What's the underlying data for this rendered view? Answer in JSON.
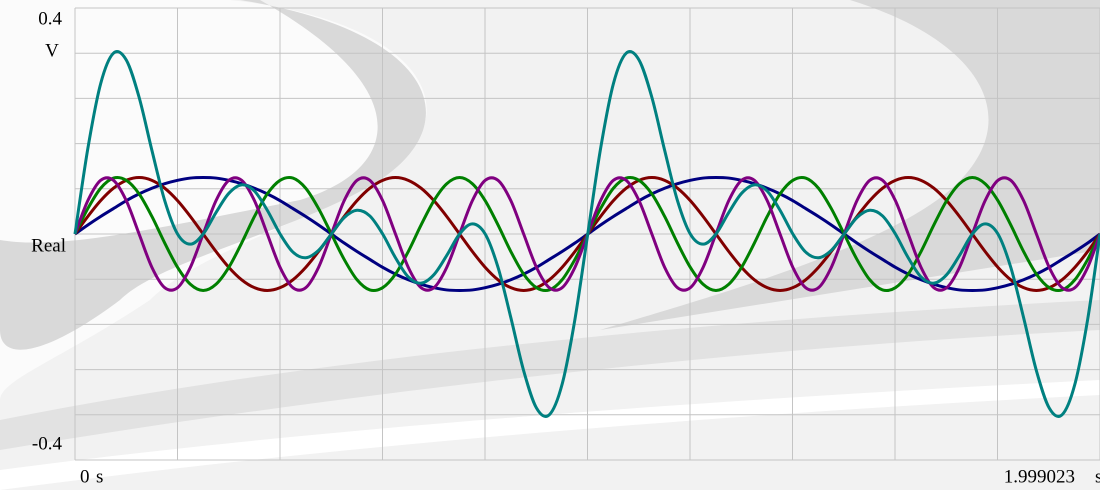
{
  "chart_data": {
    "type": "line",
    "y_label": "Real",
    "y_unit": "V",
    "x_unit": "s",
    "xlim": [
      0,
      1.999023
    ],
    "ylim": [
      -0.4,
      0.4
    ],
    "xticks": [
      0,
      1.999023
    ],
    "yticks": [
      0.4,
      -0.4
    ],
    "grid": true,
    "grid_divisions": [
      10,
      10
    ],
    "x": [
      0,
      0.025,
      0.05,
      0.075,
      0.1,
      0.125,
      0.15,
      0.175,
      0.2,
      0.225,
      0.25,
      0.275,
      0.3,
      0.325,
      0.35,
      0.375,
      0.4,
      0.425,
      0.45,
      0.475,
      0.5,
      0.525,
      0.55,
      0.575,
      0.6,
      0.625,
      0.65,
      0.675,
      0.7,
      0.725,
      0.75,
      0.775,
      0.8,
      0.825,
      0.85,
      0.875,
      0.9,
      0.925,
      0.95,
      0.975,
      1,
      1.025,
      1.05,
      1.075,
      1.1,
      1.125,
      1.15,
      1.175,
      1.2,
      1.225,
      1.25,
      1.275,
      1.3,
      1.325,
      1.35,
      1.375,
      1.4,
      1.425,
      1.45,
      1.475,
      1.5,
      1.525,
      1.55,
      1.575,
      1.6,
      1.625,
      1.65,
      1.675,
      1.7,
      1.725,
      1.75,
      1.775,
      1.8,
      1.825,
      1.85,
      1.875,
      1.9,
      1.925,
      1.95,
      1.975,
      1.999023
    ],
    "series": [
      {
        "color": "#000080",
        "values": [
          0,
          0.016,
          0.031,
          0.045,
          0.059,
          0.071,
          0.081,
          0.089,
          0.095,
          0.099,
          0.1,
          0.099,
          0.095,
          0.089,
          0.081,
          0.071,
          0.059,
          0.045,
          0.031,
          0.016,
          0,
          -0.016,
          -0.031,
          -0.045,
          -0.059,
          -0.071,
          -0.081,
          -0.089,
          -0.095,
          -0.099,
          -0.1,
          -0.099,
          -0.095,
          -0.089,
          -0.081,
          -0.071,
          -0.059,
          -0.045,
          -0.031,
          -0.016,
          0,
          0.016,
          0.031,
          0.045,
          0.059,
          0.071,
          0.081,
          0.089,
          0.095,
          0.099,
          0.1,
          0.099,
          0.095,
          0.089,
          0.081,
          0.071,
          0.059,
          0.045,
          0.031,
          0.016,
          0,
          -0.016,
          -0.031,
          -0.045,
          -0.059,
          -0.071,
          -0.081,
          -0.089,
          -0.095,
          -0.099,
          -0.1,
          -0.099,
          -0.095,
          -0.089,
          -0.081,
          -0.071,
          -0.059,
          -0.045,
          -0.031,
          -0.016,
          0
        ]
      },
      {
        "color": "#800000",
        "values": [
          0,
          0.031,
          0.059,
          0.081,
          0.095,
          0.1,
          0.095,
          0.081,
          0.059,
          0.031,
          0,
          -0.031,
          -0.059,
          -0.081,
          -0.095,
          -0.1,
          -0.095,
          -0.081,
          -0.059,
          -0.031,
          0,
          0.031,
          0.059,
          0.081,
          0.095,
          0.1,
          0.095,
          0.081,
          0.059,
          0.031,
          0,
          -0.031,
          -0.059,
          -0.081,
          -0.095,
          -0.1,
          -0.095,
          -0.081,
          -0.059,
          -0.031,
          0,
          0.031,
          0.059,
          0.081,
          0.095,
          0.1,
          0.095,
          0.081,
          0.059,
          0.031,
          0,
          -0.031,
          -0.059,
          -0.081,
          -0.095,
          -0.1,
          -0.095,
          -0.081,
          -0.059,
          -0.031,
          0,
          0.031,
          0.059,
          0.081,
          0.095,
          0.1,
          0.095,
          0.081,
          0.059,
          0.031,
          0,
          -0.031,
          -0.059,
          -0.081,
          -0.095,
          -0.1,
          -0.095,
          -0.081,
          -0.059,
          -0.031,
          0
        ]
      },
      {
        "color": "#008000",
        "values": [
          0,
          0.045,
          0.081,
          0.099,
          0.095,
          0.071,
          0.031,
          -0.016,
          -0.059,
          -0.089,
          -0.1,
          -0.089,
          -0.059,
          -0.016,
          0.031,
          0.071,
          0.095,
          0.099,
          0.081,
          0.045,
          0,
          -0.045,
          -0.081,
          -0.099,
          -0.095,
          -0.071,
          -0.031,
          0.016,
          0.059,
          0.089,
          0.1,
          0.089,
          0.059,
          0.016,
          -0.031,
          -0.071,
          -0.095,
          -0.099,
          -0.081,
          -0.045,
          0,
          0.045,
          0.081,
          0.099,
          0.095,
          0.071,
          0.031,
          -0.016,
          -0.059,
          -0.089,
          -0.1,
          -0.089,
          -0.059,
          -0.016,
          0.031,
          0.071,
          0.095,
          0.099,
          0.081,
          0.045,
          0,
          -0.045,
          -0.081,
          -0.099,
          -0.095,
          -0.071,
          -0.031,
          0.016,
          0.059,
          0.089,
          0.1,
          0.089,
          0.059,
          0.016,
          -0.031,
          -0.071,
          -0.095,
          -0.099,
          -0.081,
          -0.045,
          0
        ]
      },
      {
        "color": "#800080",
        "values": [
          0,
          0.059,
          0.095,
          0.095,
          0.059,
          0,
          -0.059,
          -0.095,
          -0.095,
          -0.059,
          0,
          0.059,
          0.095,
          0.095,
          0.059,
          0,
          -0.059,
          -0.095,
          -0.095,
          -0.059,
          0,
          0.059,
          0.095,
          0.095,
          0.059,
          0,
          -0.059,
          -0.095,
          -0.095,
          -0.059,
          0,
          0.059,
          0.095,
          0.095,
          0.059,
          0,
          -0.059,
          -0.095,
          -0.095,
          -0.059,
          0,
          0.059,
          0.095,
          0.095,
          0.059,
          0,
          -0.059,
          -0.095,
          -0.095,
          -0.059,
          0,
          0.059,
          0.095,
          0.095,
          0.059,
          0,
          -0.059,
          -0.095,
          -0.095,
          -0.059,
          0,
          0.059,
          0.095,
          0.095,
          0.059,
          0,
          -0.059,
          -0.095,
          -0.095,
          -0.059,
          0,
          0.059,
          0.095,
          0.095,
          0.059,
          0,
          -0.059,
          -0.095,
          -0.095,
          -0.059,
          0
        ]
      },
      {
        "color": "#008080",
        "values": [
          0,
          0.151,
          0.266,
          0.32,
          0.308,
          0.242,
          0.148,
          0.059,
          0,
          -0.018,
          0,
          0.038,
          0.072,
          0.087,
          0.076,
          0.042,
          0,
          -0.032,
          -0.042,
          -0.029,
          0,
          0.029,
          0.042,
          0.032,
          0,
          -0.042,
          -0.076,
          -0.087,
          -0.072,
          -0.038,
          0,
          0.018,
          0,
          -0.059,
          -0.148,
          -0.242,
          -0.308,
          -0.32,
          -0.266,
          -0.151,
          0,
          0.151,
          0.266,
          0.32,
          0.308,
          0.242,
          0.148,
          0.059,
          0,
          -0.018,
          0,
          0.038,
          0.072,
          0.087,
          0.076,
          0.042,
          0,
          -0.032,
          -0.042,
          -0.029,
          0,
          0.029,
          0.042,
          0.032,
          0,
          -0.042,
          -0.076,
          -0.087,
          -0.072,
          -0.038,
          0,
          0.018,
          0,
          -0.059,
          -0.148,
          -0.242,
          -0.308,
          -0.32,
          -0.266,
          -0.151,
          0
        ]
      }
    ]
  }
}
